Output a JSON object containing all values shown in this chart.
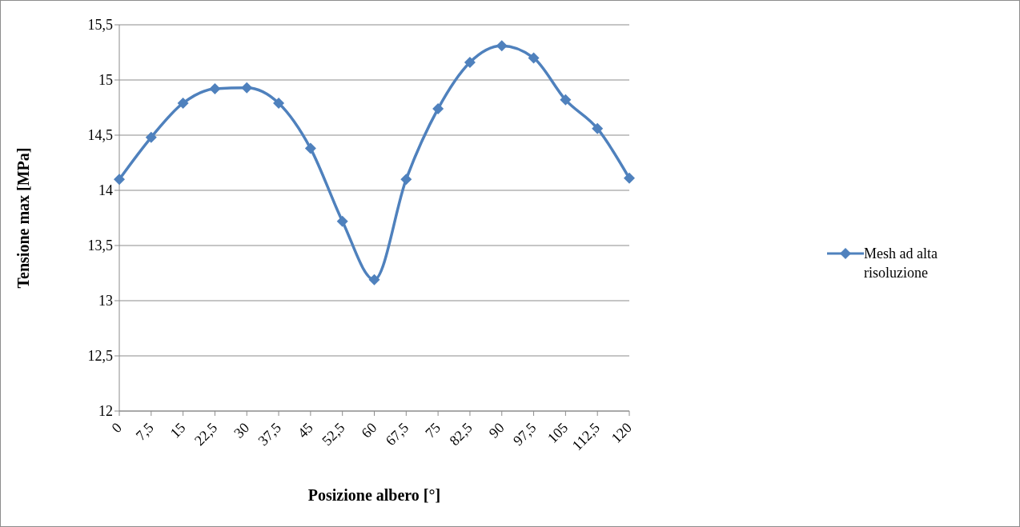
{
  "chart_data": {
    "type": "line",
    "xlabel": "Posizione albero [°]",
    "ylabel": "Tensione max [MPa]",
    "categories": [
      "0",
      "7,5",
      "15",
      "22,5",
      "30",
      "37,5",
      "45",
      "52,5",
      "60",
      "67,5",
      "75",
      "82,5",
      "90",
      "97,5",
      "105",
      "112,5",
      "120"
    ],
    "series": [
      {
        "name": "Mesh ad alta risoluzione",
        "color": "#4f81bd",
        "values": [
          14.1,
          14.48,
          14.79,
          14.92,
          14.93,
          14.79,
          14.38,
          13.72,
          13.19,
          14.1,
          14.74,
          15.16,
          15.31,
          15.2,
          14.82,
          14.56,
          14.11
        ]
      }
    ],
    "ylim": [
      12,
      15.5
    ],
    "yticks": [
      {
        "value": 12,
        "label": "12"
      },
      {
        "value": 12.5,
        "label": "12,5"
      },
      {
        "value": 13,
        "label": "13"
      },
      {
        "value": 13.5,
        "label": "13,5"
      },
      {
        "value": 14,
        "label": "14"
      },
      {
        "value": 14.5,
        "label": "14,5"
      },
      {
        "value": 15,
        "label": "15"
      },
      {
        "value": 15.5,
        "label": "15,5"
      }
    ],
    "grid": "y",
    "legend": "right",
    "marker": "diamond",
    "line_style": "solid"
  }
}
